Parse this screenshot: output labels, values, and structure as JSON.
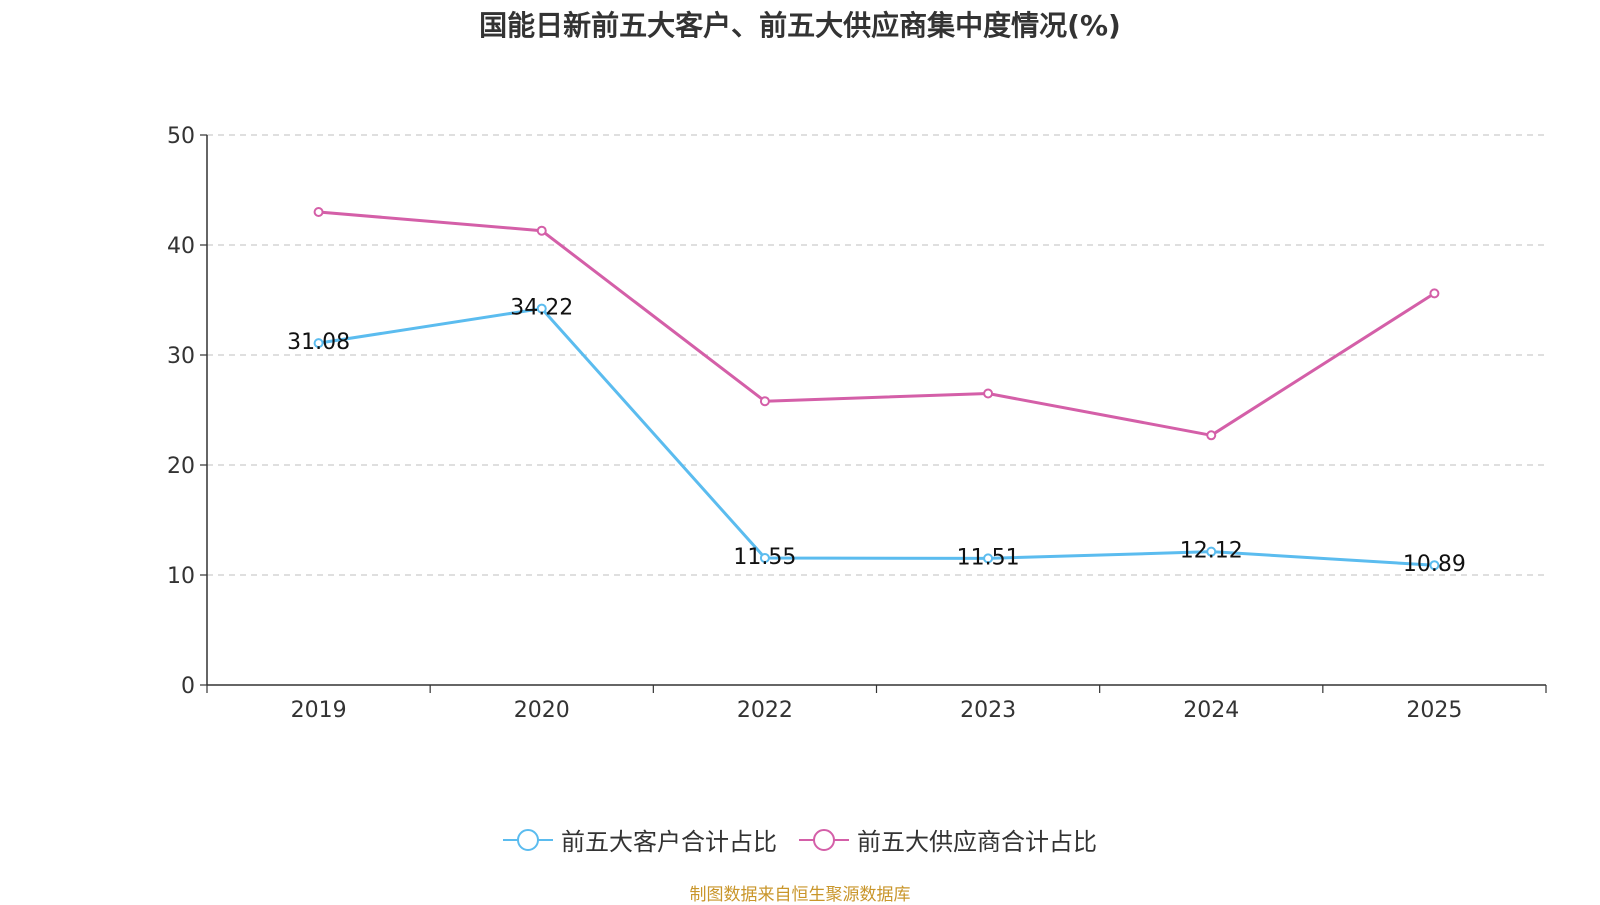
{
  "title": "国能日新前五大客户、前五大供应商集中度情况(%)",
  "source": "制图数据来自恒生聚源数据库",
  "colors": {
    "customers": "#5bbcef",
    "suppliers": "#d45fa8",
    "grid": "#cccccc",
    "axis": "#333333",
    "source": "#c9962b"
  },
  "chart_data": {
    "type": "line",
    "title": "国能日新前五大客户、前五大供应商集中度情况(%)",
    "categories": [
      "2019",
      "2020",
      "2022",
      "2023",
      "2024",
      "2025"
    ],
    "ylim": [
      0,
      50
    ],
    "yticks": [
      0,
      10,
      20,
      30,
      40,
      50
    ],
    "grid": true,
    "legend_position": "bottom-center",
    "series": [
      {
        "name": "前五大客户合计占比",
        "color": "#5bbcef",
        "values": [
          31.08,
          34.22,
          11.55,
          11.51,
          12.12,
          10.89
        ],
        "labels": [
          "31.08",
          "34.22",
          "11.55",
          "11.51",
          "12.12",
          "10.89"
        ]
      },
      {
        "name": "前五大供应商合计占比",
        "color": "#d45fa8",
        "values": [
          43.0,
          41.3,
          25.8,
          26.5,
          22.7,
          35.6
        ]
      }
    ]
  }
}
